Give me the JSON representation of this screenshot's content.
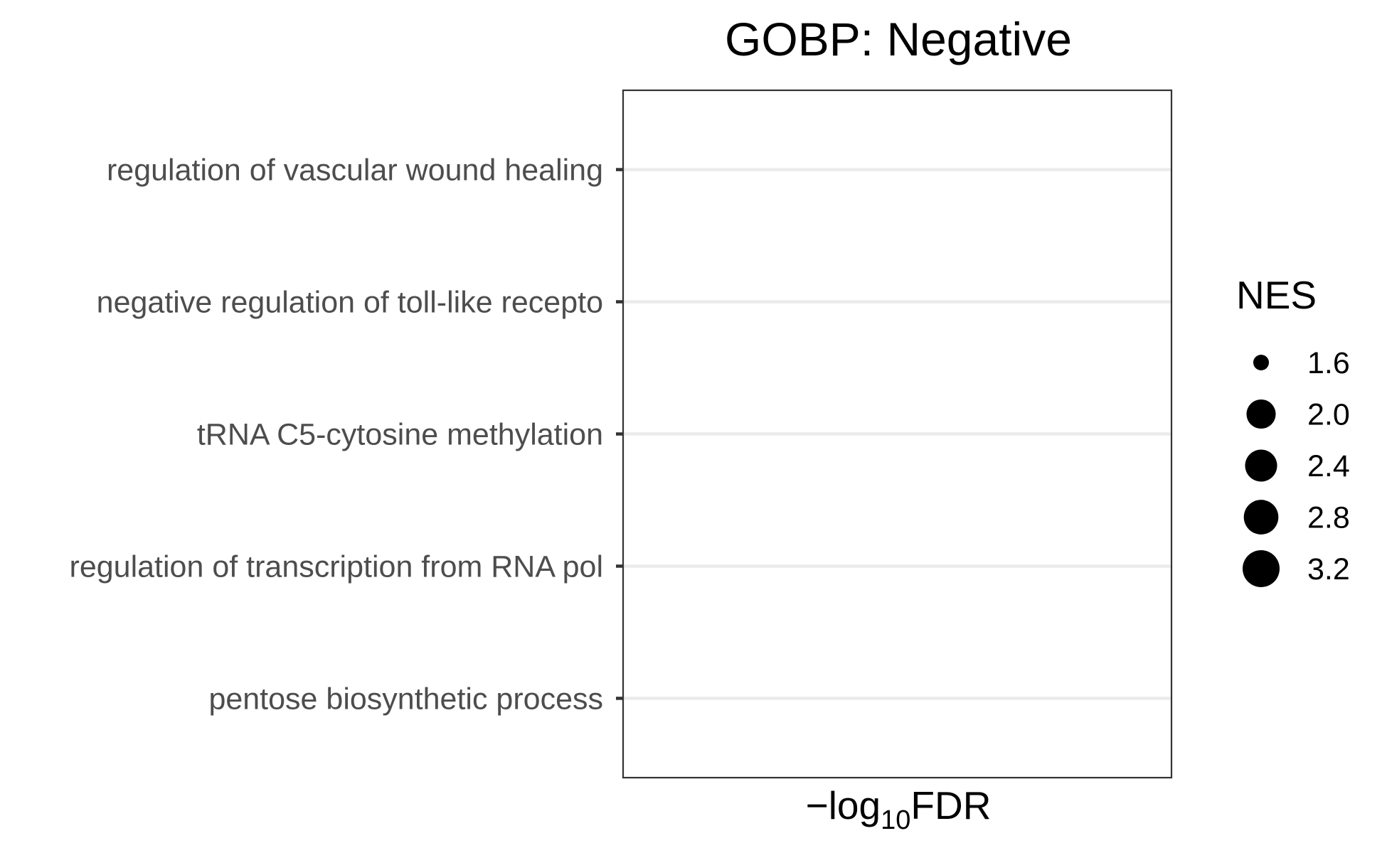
{
  "chart_data": {
    "type": "scatter",
    "title": "GOBP: Negative",
    "xlabel_prefix": "−log",
    "xlabel_subscript": "10",
    "xlabel_suffix": "FDR",
    "ylabel": "",
    "categories": [
      "regulation of vascular wound healing",
      "negative regulation of toll-like recepto",
      "tRNA C5-cytosine methylation",
      "regulation of transcription from RNA pol",
      "pentose biosynthetic process"
    ],
    "series": [],
    "grid": true,
    "legend": {
      "title": "NES",
      "position": "right",
      "entries": [
        {
          "label": "1.6",
          "value": 1.6
        },
        {
          "label": "2.0",
          "value": 2.0
        },
        {
          "label": "2.4",
          "value": 2.4
        },
        {
          "label": "2.8",
          "value": 2.8
        },
        {
          "label": "3.2",
          "value": 3.2
        }
      ]
    },
    "colors": {
      "point": "#000000",
      "grid": "#ebebeb",
      "panel_border": "#333333",
      "tick_label": "#4d4d4d"
    }
  }
}
